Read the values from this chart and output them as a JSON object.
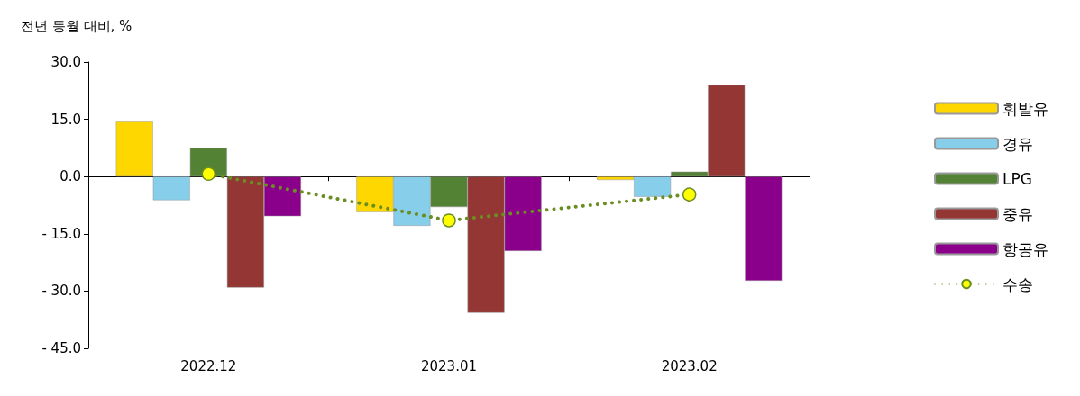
{
  "chart_data": {
    "type": "bar",
    "ylabel": "전년 동월 대비, %",
    "categories": [
      "2022.12",
      "2023.01",
      "2023.02"
    ],
    "series": [
      {
        "name": "휘발유",
        "color": "#ffd700",
        "values": [
          14.4,
          -9.3,
          -0.9
        ]
      },
      {
        "name": "경유",
        "color": "#87ceeb",
        "values": [
          -6.2,
          -12.9,
          -5.3
        ]
      },
      {
        "name": "LPG",
        "color": "#548235",
        "values": [
          7.5,
          -8.0,
          1.3
        ]
      },
      {
        "name": "중유",
        "color": "#943634",
        "values": [
          -29.1,
          -35.7,
          24.0
        ]
      },
      {
        "name": "항공유",
        "color": "#8b008b",
        "values": [
          -10.4,
          -19.5,
          -27.3
        ]
      },
      {
        "name": "수송",
        "type": "line",
        "color": "#6b8e23",
        "marker": "circle",
        "line_style": "dotted",
        "values": [
          0.7,
          -11.5,
          -4.7
        ]
      }
    ],
    "ylim": [
      -45,
      30
    ],
    "yticks": [
      {
        "value": -45,
        "label": "- 45.0"
      },
      {
        "value": -30,
        "label": "- 30.0"
      },
      {
        "value": -15,
        "label": "- 15.0"
      },
      {
        "value": 0,
        "label": "0.0"
      },
      {
        "value": 15,
        "label": "15.0"
      },
      {
        "value": 30,
        "label": "30.0"
      }
    ],
    "legend": "right"
  }
}
